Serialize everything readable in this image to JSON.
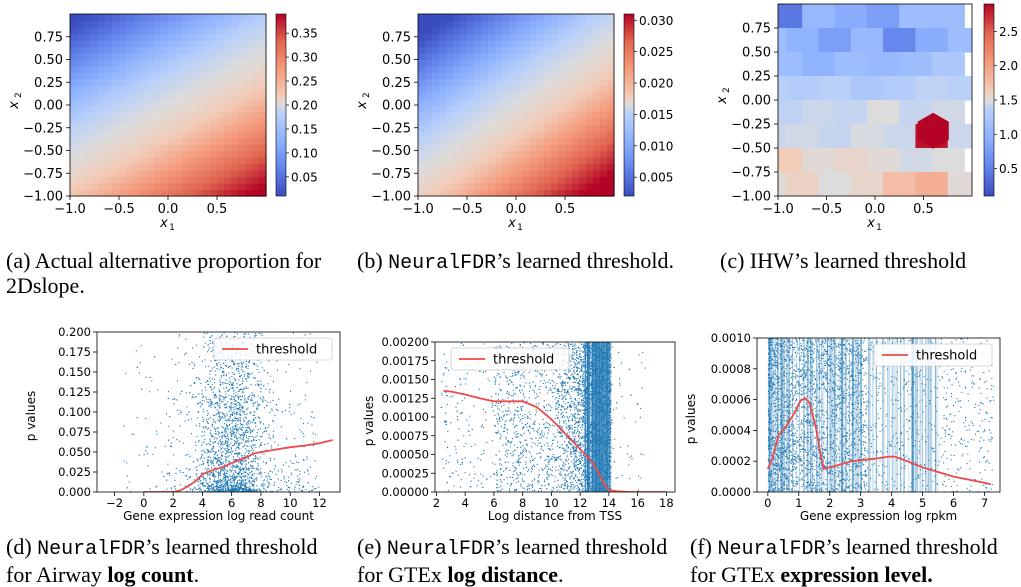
{
  "top_panels": [
    {
      "caption": {
        "label": "(a)",
        "text": "Actual alternative proportion for 2Dslope."
      },
      "chart_data": {
        "type": "heatmap",
        "xlabel": "x1",
        "ylabel": "x2",
        "xlim": [
          -1.0,
          1.0
        ],
        "ylim": [
          -1.0,
          1.0
        ],
        "xticks": [
          "−1.0",
          "−0.5",
          "0.0",
          "0.5"
        ],
        "yticks": [
          "0.75",
          "0.50",
          "0.25",
          "0.00",
          "−0.25",
          "−0.50",
          "−0.75",
          "−1.00"
        ],
        "colorbar": {
          "min": 0.01,
          "max": 0.39,
          "ticks": [
            "0.35",
            "0.30",
            "0.25",
            "0.20",
            "0.15",
            "0.10",
            "0.05"
          ],
          "tick_values": [
            0.35,
            0.3,
            0.25,
            0.2,
            0.15,
            0.1,
            0.05
          ]
        },
        "colormap": "coolwarm",
        "field": "increases toward x1 = 1, x2 = −1 (bottom-right)"
      }
    },
    {
      "caption": {
        "label": "(b)",
        "mono": "NeuralFDR",
        "text": "’s learned threshold."
      },
      "chart_data": {
        "type": "heatmap",
        "xlabel": "x1",
        "ylabel": "x2",
        "xlim": [
          -1.0,
          1.0
        ],
        "ylim": [
          -1.0,
          1.0
        ],
        "xticks": [
          "−1.0",
          "−0.5",
          "0.0",
          "0.5"
        ],
        "yticks": [
          "0.75",
          "0.50",
          "0.25",
          "0.00",
          "−0.25",
          "−0.50",
          "−0.75",
          "−1.00"
        ],
        "colorbar": {
          "min": 0.002,
          "max": 0.031,
          "ticks": [
            "0.030",
            "0.025",
            "0.020",
            "0.015",
            "0.010",
            "0.005"
          ],
          "tick_values": [
            0.03,
            0.025,
            0.02,
            0.015,
            0.01,
            0.005
          ]
        },
        "colormap": "coolwarm"
      }
    },
    {
      "caption": {
        "label": "(c)",
        "text": "IHW’s learned threshold"
      },
      "chart_data": {
        "type": "heatmap",
        "xlabel": "x1",
        "ylabel": "x2",
        "xlim": [
          -1.0,
          1.0
        ],
        "ylim": [
          -1.0,
          1.0
        ],
        "xticks": [
          "−1.0",
          "−0.5",
          "0.0",
          "0.5"
        ],
        "yticks": [
          "0.75",
          "0.50",
          "0.25",
          "0.00",
          "−0.25",
          "−0.50",
          "−0.75",
          "−1.00"
        ],
        "colorbar": {
          "min": 0.1,
          "max": 2.9,
          "ticks": [
            "2.5",
            "2.0",
            "1.5",
            "1.0",
            "0.5"
          ],
          "tick_values": [
            2.5,
            2.0,
            1.5,
            1.0,
            0.5
          ]
        },
        "colormap": "coolwarm",
        "cells": "piecewise-constant tiles; highest value tile near x1 = 0.6, x2 = −0.3"
      }
    }
  ],
  "bottom_panels": [
    {
      "caption": {
        "label": "(d)",
        "mono": "NeuralFDR",
        "text": "’s learned threshold for Airway",
        "bold": "log count",
        "tail": "."
      },
      "chart_data": {
        "type": "scatter",
        "xlabel": "Gene expression log read count",
        "ylabel": "p values",
        "xlim": [
          -3.2,
          13.4
        ],
        "ylim": [
          0,
          0.2
        ],
        "xticks": [
          -2,
          0,
          2,
          4,
          6,
          8,
          10,
          12
        ],
        "xtick_labels": [
          "−2",
          "0",
          "2",
          "4",
          "6",
          "8",
          "10",
          "12"
        ],
        "yticks": [
          0,
          0.025,
          0.05,
          0.075,
          0.1,
          0.125,
          0.15,
          0.175,
          0.2
        ],
        "ytick_labels": [
          "0.000",
          "0.025",
          "0.050",
          "0.075",
          "0.100",
          "0.125",
          "0.150",
          "0.175",
          "0.200"
        ],
        "legend": {
          "label": "threshold",
          "position": "top-right"
        },
        "series": [
          {
            "name": "threshold",
            "x": [
              0,
              1,
              2,
              2.5,
              3,
              3.5,
              4,
              4.5,
              5,
              5.5,
              6,
              6.5,
              7,
              7.5,
              8,
              9,
              10,
              11,
              12,
              12.9
            ],
            "y": [
              0.0,
              0.0,
              0.0,
              0.002,
              0.007,
              0.013,
              0.022,
              0.026,
              0.029,
              0.032,
              0.036,
              0.04,
              0.043,
              0.048,
              0.05,
              0.053,
              0.056,
              0.058,
              0.061,
              0.065
            ]
          }
        ],
        "scatter_density": {
          "x_range": [
            -1.5,
            12.5
          ],
          "dense_x": [
            3,
            8
          ],
          "dense_near_y0": true
        }
      }
    },
    {
      "caption": {
        "label": "(e)",
        "mono": "NeuralFDR",
        "text": "’s learned threshold for GTEx ",
        "bold": "log distance",
        "tail": "."
      },
      "chart_data": {
        "type": "scatter",
        "xlabel": "Log distance from TSS",
        "ylabel": "p values",
        "xlim": [
          1.9,
          18.6
        ],
        "ylim": [
          0,
          0.002
        ],
        "xticks": [
          2,
          4,
          6,
          8,
          10,
          12,
          14,
          16,
          18
        ],
        "xtick_labels": [
          "2",
          "4",
          "6",
          "8",
          "10",
          "12",
          "14",
          "16",
          "18"
        ],
        "yticks": [
          0,
          0.00025,
          0.0005,
          0.00075,
          0.001,
          0.00125,
          0.0015,
          0.00175,
          0.002
        ],
        "ytick_labels": [
          "0.00000",
          "0.00025",
          "0.00050",
          "0.00075",
          "0.00100",
          "0.00125",
          "0.00150",
          "0.00175",
          "0.00200"
        ],
        "legend": {
          "label": "threshold",
          "position": "top-left"
        },
        "series": [
          {
            "name": "threshold",
            "x": [
              2.5,
              3.0,
              4.0,
              5.0,
              6.0,
              7.0,
              8.0,
              9.0,
              10.0,
              11.0,
              12.0,
              12.8,
              13.3,
              13.7,
              14.0,
              14.5,
              15.5,
              17.0,
              18.0
            ],
            "y": [
              0.00135,
              0.00134,
              0.0013,
              0.00125,
              0.00121,
              0.00121,
              0.00121,
              0.00113,
              0.00097,
              0.00077,
              0.00057,
              0.00041,
              0.00025,
              9e-05,
              3e-05,
              1e-05,
              0.0,
              0.0,
              0.0
            ]
          }
        ],
        "scatter_density": {
          "x_range": [
            2.3,
            16.5
          ],
          "dense_x": [
            10,
            14.1
          ],
          "dense_near_y0": true
        }
      }
    },
    {
      "caption": {
        "label": "(f)",
        "mono": "NeuralFDR",
        "text": "’s learned threshold for GTEx ",
        "bold": "expression level.",
        "tail": ""
      },
      "chart_data": {
        "type": "scatter",
        "xlabel": "Gene expression log rpkm",
        "ylabel": "p values",
        "xlim": [
          -0.35,
          7.5
        ],
        "ylim": [
          0,
          0.001
        ],
        "xticks": [
          0,
          1,
          2,
          3,
          4,
          5,
          6,
          7
        ],
        "xtick_labels": [
          "0",
          "1",
          "2",
          "3",
          "4",
          "5",
          "6",
          "7"
        ],
        "yticks": [
          0,
          0.0002,
          0.0004,
          0.0006,
          0.0008,
          0.001
        ],
        "ytick_labels": [
          "0.0000",
          "0.0002",
          "0.0004",
          "0.0006",
          "0.0008",
          "0.0010"
        ],
        "legend": {
          "label": "threshold",
          "position": "top-right"
        },
        "series": [
          {
            "name": "threshold",
            "x": [
              0.0,
              0.15,
              0.35,
              0.6,
              0.85,
              1.05,
              1.2,
              1.35,
              1.55,
              1.7,
              1.8,
              2.2,
              2.7,
              3.2,
              3.6,
              3.9,
              4.1,
              4.5,
              5.0,
              5.5,
              6.0,
              6.5,
              7.0,
              7.2
            ],
            "y": [
              0.00015,
              0.00022,
              0.00037,
              0.00043,
              0.00051,
              0.00059,
              0.00061,
              0.00058,
              0.00042,
              0.00025,
              0.00015,
              0.00017,
              0.0002,
              0.00021,
              0.00022,
              0.00023,
              0.00023,
              0.0002,
              0.00016,
              0.00013,
              0.0001,
              8e-05,
              6e-05,
              5e-05
            ]
          }
        ],
        "scatter_density": {
          "x_range": [
            -0.1,
            7.3
          ],
          "dense_x": [
            0,
            4
          ],
          "dense_near_y0": false
        }
      }
    }
  ],
  "colors": {
    "scatter": "#1f77b4",
    "threshold": "#ef4a4a",
    "low": "#3b4cc0",
    "mid": "#dddddd",
    "high": "#b40426"
  }
}
